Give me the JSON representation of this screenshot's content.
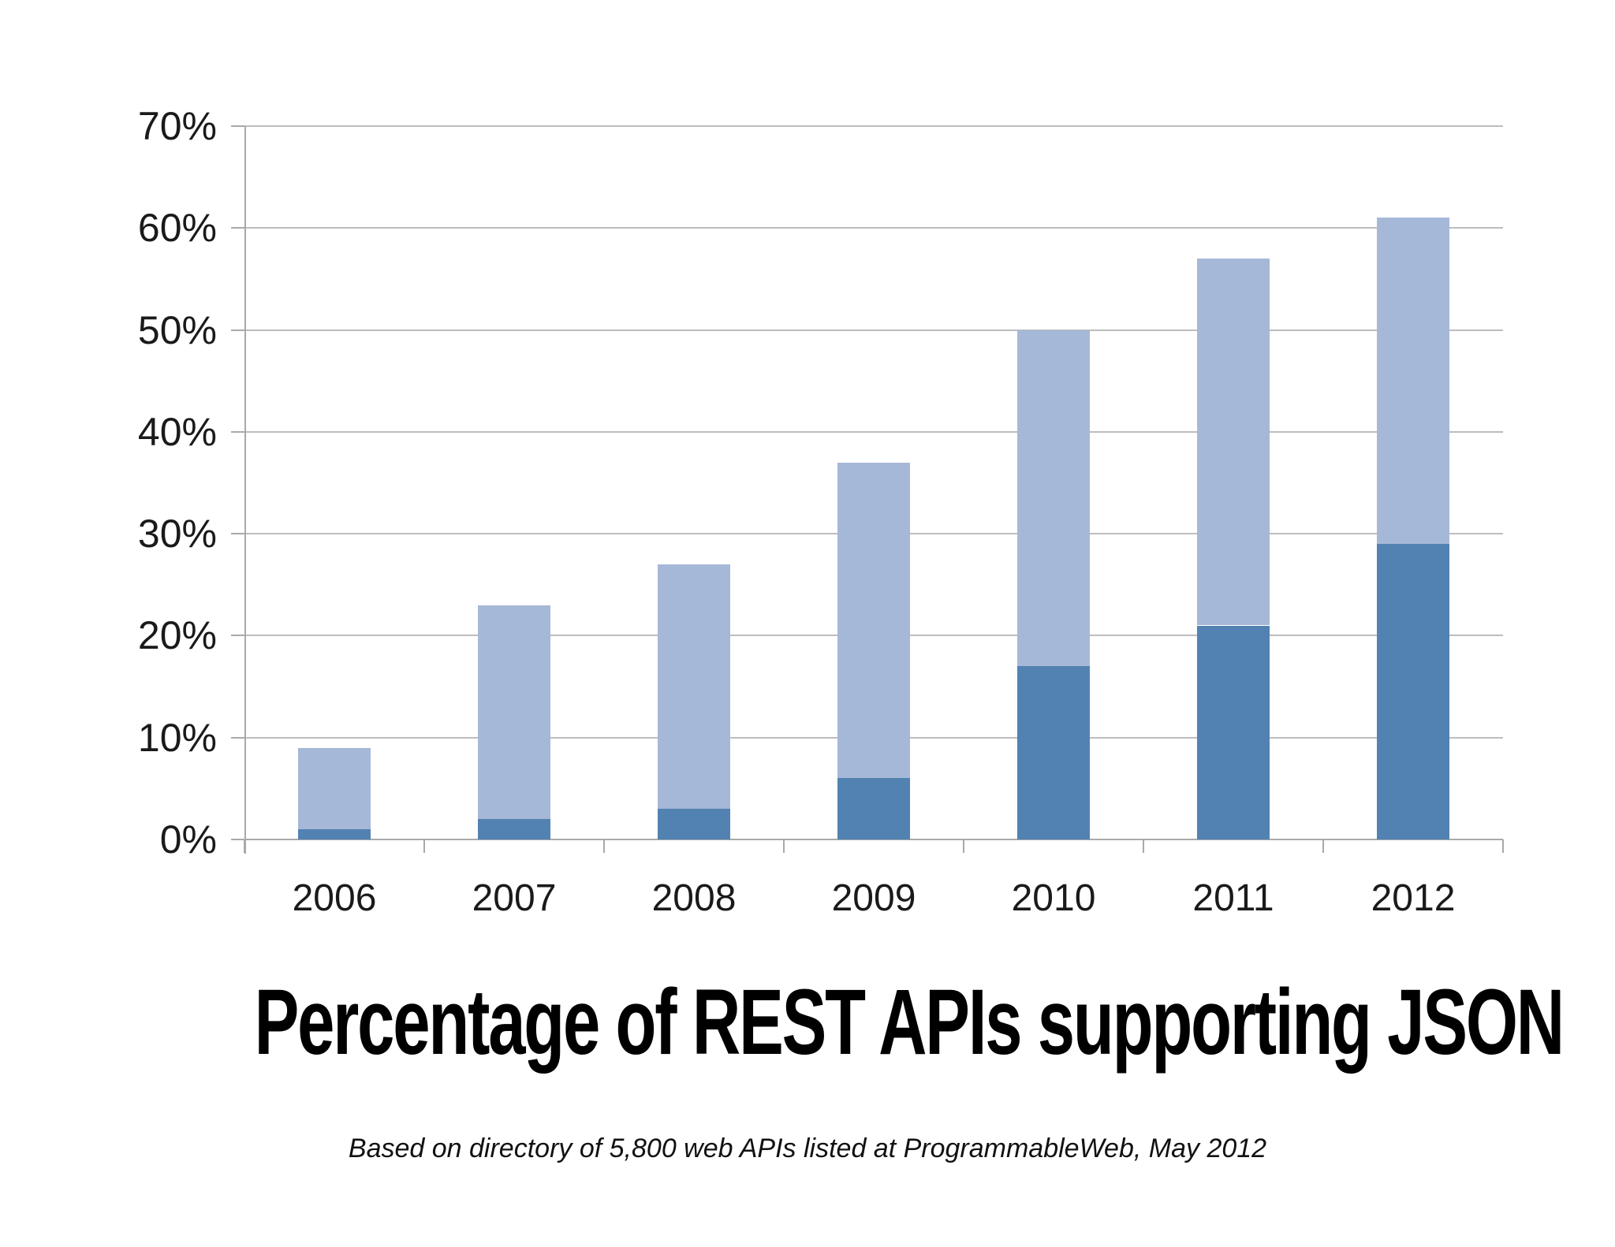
{
  "chart_data": {
    "type": "bar",
    "stacked": true,
    "title": "Percentage of REST APIs supporting JSON",
    "subtitle": "Based on directory of 5,800 web APIs listed at ProgrammableWeb, May 2012",
    "categories": [
      "2006",
      "2007",
      "2008",
      "2009",
      "2010",
      "2011",
      "2012"
    ],
    "series": [
      {
        "name": "dark-bottom-segment",
        "color": "#5282b1",
        "values": [
          1,
          2,
          3,
          6,
          17,
          21,
          29
        ]
      },
      {
        "name": "light-top-segment",
        "color": "#a6b8d7",
        "values": [
          8,
          21,
          24,
          31,
          33,
          36,
          32
        ]
      }
    ],
    "stack_totals": [
      9,
      23,
      27,
      37,
      50,
      57,
      61
    ],
    "ylim": [
      0,
      70
    ],
    "y_tick_step": 10,
    "y_tick_labels": [
      "0%",
      "10%",
      "20%",
      "30%",
      "40%",
      "50%",
      "60%",
      "70%"
    ],
    "xlabel": "",
    "ylabel": "",
    "grid": true,
    "legend": false,
    "colors": {
      "gridline": "#bdbdbd",
      "axis": "#a9a9a9",
      "tick_text": "#1a1a1a",
      "title_text": "#000000"
    }
  }
}
